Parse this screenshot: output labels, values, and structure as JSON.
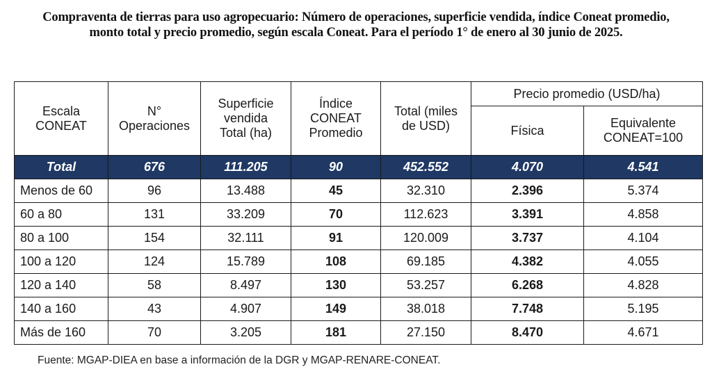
{
  "title": "Compraventa de tierras para uso agropecuario: Número de operaciones, superficie vendida, índice Coneat promedio, monto total y precio promedio, según escala Coneat. Para el período 1° de enero al 30 junio de 2025.",
  "colors": {
    "total_row_bg": "#1f3864",
    "total_row_text": "#ffffff",
    "border": "#1a1a1a"
  },
  "table": {
    "headers": {
      "escala": [
        "Escala",
        "CONEAT"
      ],
      "operaciones": [
        "N°",
        "Operaciones"
      ],
      "superficie": [
        "Superficie",
        "vendida",
        "Total (ha)"
      ],
      "indice": [
        "Índice",
        "CONEAT",
        "Promedio"
      ],
      "total_usd": [
        "Total (miles",
        "de USD)"
      ],
      "precio_group": "Precio promedio (USD/ha)",
      "fisica": "Física",
      "equivalente": [
        "Equivalente",
        "CONEAT=100"
      ]
    },
    "total": {
      "label": "Total",
      "operaciones": "676",
      "superficie": "111.205",
      "indice": "90",
      "total_usd": "452.552",
      "fisica": "4.070",
      "equivalente": "4.541"
    },
    "rows": [
      {
        "label": "Menos de 60",
        "operaciones": "96",
        "superficie": "13.488",
        "indice": "45",
        "total_usd": "32.310",
        "fisica": "2.396",
        "equivalente": "5.374"
      },
      {
        "label": "60 a 80",
        "operaciones": "131",
        "superficie": "33.209",
        "indice": "70",
        "total_usd": "112.623",
        "fisica": "3.391",
        "equivalente": "4.858"
      },
      {
        "label": "80 a 100",
        "operaciones": "154",
        "superficie": "32.111",
        "indice": "91",
        "total_usd": "120.009",
        "fisica": "3.737",
        "equivalente": "4.104"
      },
      {
        "label": "100 a 120",
        "operaciones": "124",
        "superficie": "15.789",
        "indice": "108",
        "total_usd": "69.185",
        "fisica": "4.382",
        "equivalente": "4.055"
      },
      {
        "label": "120 a 140",
        "operaciones": "58",
        "superficie": "8.497",
        "indice": "130",
        "total_usd": "53.257",
        "fisica": "6.268",
        "equivalente": "4.828"
      },
      {
        "label": "140 a 160",
        "operaciones": "43",
        "superficie": "4.907",
        "indice": "149",
        "total_usd": "38.018",
        "fisica": "7.748",
        "equivalente": "5.195"
      },
      {
        "label": "Más de 160",
        "operaciones": "70",
        "superficie": "3.205",
        "indice": "181",
        "total_usd": "27.150",
        "fisica": "8.470",
        "equivalente": "4.671"
      }
    ]
  },
  "footer": "Fuente: MGAP-DIEA en base a información de la DGR y MGAP-RENARE-CONEAT."
}
